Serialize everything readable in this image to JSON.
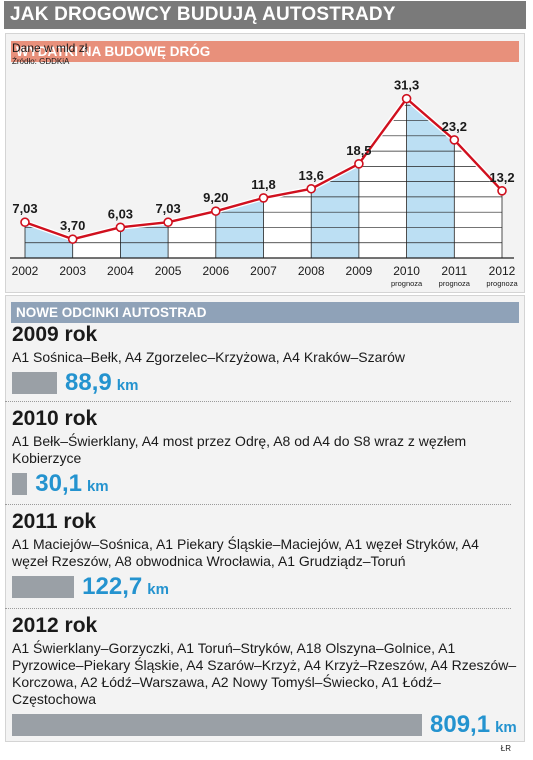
{
  "main_title": "JAK DROGOWCY BUDUJĄ AUTOSTRADY",
  "chart_section": {
    "header": "WYDATKI NA BUDOWĘ DRÓG",
    "unit": "Dane w mld zł",
    "source": "Źródło: GDDKiA"
  },
  "chart_data": {
    "type": "line",
    "title": "WYDATKI NA BUDOWĘ DRÓG",
    "ylabel": "Dane w mld zł",
    "categories": [
      "2002",
      "2003",
      "2004",
      "2005",
      "2006",
      "2007",
      "2008",
      "2009",
      "2010",
      "2011",
      "2012"
    ],
    "category_notes": [
      "",
      "",
      "",
      "",
      "",
      "",
      "",
      "",
      "prognoza",
      "prognoza",
      "prognoza"
    ],
    "values": [
      7.03,
      3.7,
      6.03,
      7.03,
      9.2,
      11.8,
      13.6,
      18.5,
      31.3,
      23.2,
      13.2
    ],
    "value_labels": [
      "7,03",
      "3,70",
      "6,03",
      "7,03",
      "9,20",
      "11,8",
      "13,6",
      "18,5",
      "31,3",
      "23,2",
      "13,2"
    ],
    "ylim": [
      0,
      33
    ],
    "grid": true,
    "colors": {
      "line": "#d0101e",
      "area_blue": "#bcdff3",
      "area_white": "#ffffff"
    }
  },
  "sections": {
    "header": "NOWE ODCINKI AUTOSTRAD",
    "items": [
      {
        "year_label": "2009 rok",
        "routes": "A1 Sośnica–Bełk, A4 Zgorzelec–Krzyżowa, A4 Kraków–Szarów",
        "km_value": 88.9,
        "km_text": "88,9",
        "unit": "km"
      },
      {
        "year_label": "2010 rok",
        "routes": "A1 Bełk–Świerklany, A4 most przez Odrę, A8 od A4 do S8 wraz z węzłem Kobierzyce",
        "km_value": 30.1,
        "km_text": "30,1",
        "unit": "km"
      },
      {
        "year_label": "2011 rok",
        "routes": "A1 Maciejów–Sośnica, A1 Piekary Śląskie–Maciejów, A1 węzeł Stryków, A4 węzeł Rzeszów, A8 obwodnica Wrocławia, A1 Grudziądz–Toruń",
        "km_value": 122.7,
        "km_text": "122,7",
        "unit": "km"
      },
      {
        "year_label": "2012 rok",
        "routes": "A1 Świerklany–Gorzyczki, A1 Toruń–Stryków, A18 Olszyna–Golnice, A1 Pyrzowice–Piekary Śląskie, A4 Szarów–Krzyż, A4 Krzyż–Rzeszów, A4 Rzeszów–Korczowa, A2 Łódź–Warszawa, A2 Nowy Tomyśl–Świecko, A1 Łódź–Częstochowa",
        "km_value": 809.1,
        "km_text": "809,1",
        "unit": "km"
      }
    ]
  },
  "credit": "ŁR"
}
